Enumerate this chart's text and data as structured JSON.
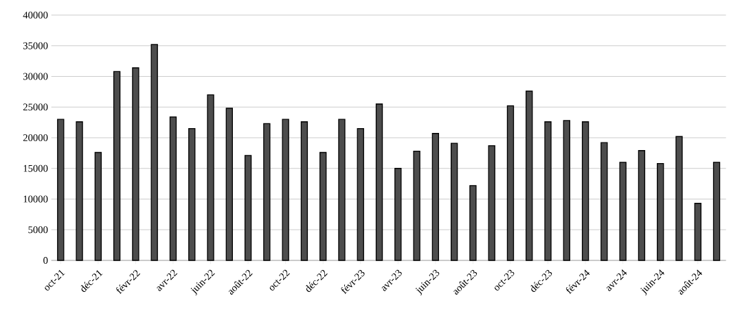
{
  "chart_data": {
    "type": "bar",
    "categories": [
      "oct-21",
      null,
      "déc-21",
      null,
      "févr-22",
      null,
      "avr-22",
      null,
      "juin-22",
      null,
      "août-22",
      null,
      "oct-22",
      null,
      "déc-22",
      null,
      "févr-23",
      null,
      "avr-23",
      null,
      "juin-23",
      null,
      "août-23",
      null,
      "oct-23",
      null,
      "déc-23",
      null,
      "févr-24",
      null,
      "avr-24",
      null,
      "juin-24",
      null,
      "août-24",
      null
    ],
    "values": [
      23000,
      22600,
      17600,
      30800,
      31400,
      35200,
      23400,
      21500,
      27000,
      24800,
      17100,
      22300,
      23000,
      22600,
      17600,
      23000,
      21500,
      25500,
      15000,
      17800,
      20700,
      19100,
      12200,
      18700,
      25200,
      27600,
      22600,
      22800,
      22600,
      19200,
      16000,
      17900,
      15800,
      20200,
      9300,
      16000
    ],
    "color": "#4d4d4d",
    "ylim": [
      0,
      40000
    ],
    "yticks": [
      0,
      5000,
      10000,
      15000,
      20000,
      25000,
      30000,
      35000,
      40000
    ],
    "grid": "y"
  }
}
